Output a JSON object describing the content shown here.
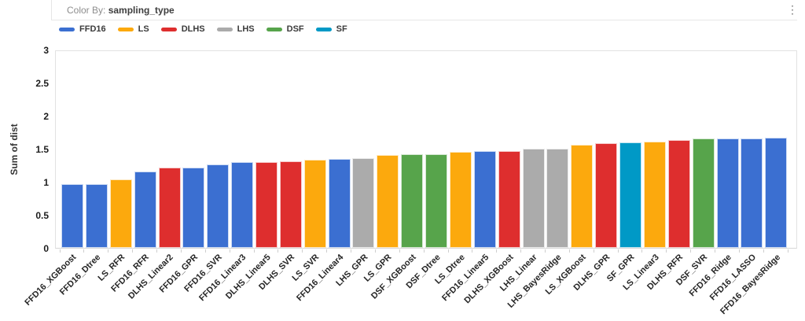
{
  "header": {
    "color_by_label": "Color By:",
    "color_by_value": "sampling_type",
    "menu_icon_glyph": "⋮"
  },
  "chart_data": {
    "type": "bar",
    "title": "",
    "xlabel": "",
    "ylabel": "Sum of dist",
    "ylim": [
      0,
      3
    ],
    "yticks": [
      "0",
      "0.5",
      "1",
      "1.5",
      "2",
      "2.5",
      "3"
    ],
    "grid": false,
    "legend_position": "top",
    "series": [
      {
        "name": "FFD16",
        "color": "#3B6FD1"
      },
      {
        "name": "LS",
        "color": "#FCA90D"
      },
      {
        "name": "DLHS",
        "color": "#DE2E2E"
      },
      {
        "name": "LHS",
        "color": "#ABABAB"
      },
      {
        "name": "DSF",
        "color": "#57A44B"
      },
      {
        "name": "SF",
        "color": "#0099C6"
      }
    ],
    "categories": [
      "FFD16_XGBoost",
      "FFD16_Dtree",
      "LS_RFR",
      "FFD16_RFR",
      "DLHS_Linear2",
      "FFD16_GPR",
      "FFD16_SVR",
      "FFD16_Linear3",
      "DLHS_Linear5",
      "DLHS_SVR",
      "LS_SVR",
      "FFD16_Linear4",
      "LHS_GPR",
      "LS_GPR",
      "DSF_XGBoost",
      "DSF_Dtree",
      "LS_Dtree",
      "FFD16_Linear5",
      "DLHS_XGBoost",
      "LHS_Linear",
      "LHS_BayesRidge",
      "LS_XGBoost",
      "DLHS_GPR",
      "SF_GPR",
      "LS_Linear3",
      "DLHS_RFR",
      "DSF_SVR",
      "FFD16_Ridge",
      "FFD16_LASSO",
      "FFD16_BayesRidge"
    ],
    "groups": [
      "FFD16",
      "FFD16",
      "LS",
      "FFD16",
      "DLHS",
      "FFD16",
      "FFD16",
      "FFD16",
      "DLHS",
      "DLHS",
      "LS",
      "FFD16",
      "LHS",
      "LS",
      "DSF",
      "DSF",
      "LS",
      "FFD16",
      "DLHS",
      "LHS",
      "LHS",
      "LS",
      "DLHS",
      "SF",
      "LS",
      "DLHS",
      "DSF",
      "FFD16",
      "FFD16",
      "FFD16"
    ],
    "values": [
      0.97,
      0.97,
      1.04,
      1.15,
      1.22,
      1.22,
      1.26,
      1.3,
      1.3,
      1.31,
      1.33,
      1.35,
      1.36,
      1.4,
      1.42,
      1.42,
      1.45,
      1.46,
      1.47,
      1.5,
      1.5,
      1.56,
      1.58,
      1.6,
      1.61,
      1.63,
      1.66,
      1.66,
      1.66,
      1.67
    ]
  }
}
